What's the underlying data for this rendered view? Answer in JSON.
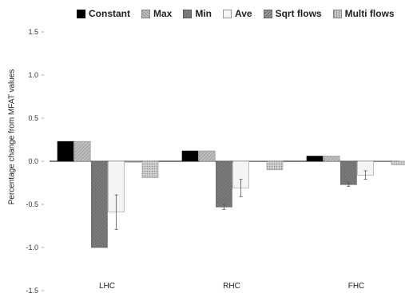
{
  "chart_data": {
    "type": "bar",
    "categories": [
      "LHC",
      "RHC",
      "FHC"
    ],
    "series": [
      {
        "name": "Constant",
        "values": [
          0.23,
          0.12,
          0.06
        ],
        "error": [
          0,
          0,
          0
        ]
      },
      {
        "name": "Max",
        "values": [
          0.23,
          0.12,
          0.06
        ],
        "error": [
          0,
          0,
          0
        ]
      },
      {
        "name": "Min",
        "values": [
          -1.0,
          -0.53,
          -0.27
        ],
        "error": [
          0,
          0.03,
          0.02
        ]
      },
      {
        "name": "Ave",
        "values": [
          -0.59,
          -0.31,
          -0.16
        ],
        "error": [
          0.2,
          0.1,
          0.05
        ]
      },
      {
        "name": "Sqrt flows",
        "values": [
          -0.01,
          0,
          0
        ],
        "error": [
          0,
          0,
          0
        ]
      },
      {
        "name": "Multi flows",
        "values": [
          -0.19,
          -0.1,
          -0.04
        ],
        "error": [
          0,
          0,
          0
        ]
      }
    ],
    "ylabel": "Percentage change from MFAT values",
    "ylim": [
      -1.5,
      1.5
    ],
    "yticks": [
      "1.5",
      "1.0",
      "0.5",
      "0.0",
      "-0.5",
      "-1.0",
      "-1.5"
    ],
    "legend_position": "top",
    "grid": false
  },
  "colors": {
    "constant": "#000000",
    "max": "#bdbdbd",
    "min": "#7a7a7a",
    "ave": "#f4f4f4",
    "sqrt": "#9a9a9a",
    "multi": "#c9c9c9"
  }
}
